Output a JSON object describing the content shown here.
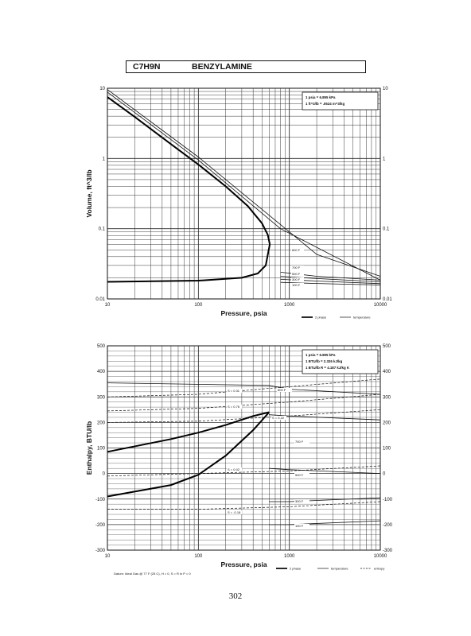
{
  "header": {
    "formula": "C7H9N",
    "compound": "BENZYLAMINE"
  },
  "page_number": "302",
  "chart_data": [
    {
      "type": "line",
      "xscale": "log",
      "yscale": "log",
      "xlim": [
        10,
        10000
      ],
      "ylim": [
        0.01,
        10
      ],
      "xticks": [
        "10",
        "100",
        "1000",
        "10000"
      ],
      "yticks": [
        "0.01",
        "0.1",
        "1",
        "10"
      ],
      "yticks_right": [
        "0.01",
        "0.1",
        "1",
        "10"
      ],
      "xlabel": "Pressure,  psia",
      "ylabel": "Volume, ft^3/lb",
      "grid": true,
      "conversion_box": [
        "1 psia  =  6.895 kPa",
        "1 ft^3/lb  =  .0624 m^3/kg"
      ],
      "legend": [
        "2 phase",
        "temperature"
      ],
      "saturation": {
        "vapor": {
          "x": [
            10,
            20,
            50,
            100,
            200,
            350,
            500,
            580,
            610
          ],
          "y": [
            7.5,
            3.9,
            1.6,
            0.82,
            0.4,
            0.21,
            0.12,
            0.082,
            0.06
          ]
        },
        "liquid": {
          "x": [
            10,
            100,
            300,
            450,
            550,
            610
          ],
          "y": [
            0.0175,
            0.0182,
            0.02,
            0.023,
            0.03,
            0.06
          ]
        }
      },
      "series": [
        {
          "name": "800 F",
          "x": [
            10,
            100,
            1000,
            2000,
            10000
          ],
          "y": [
            9.6,
            1.05,
            0.09,
            0.043,
            0.021
          ]
        },
        {
          "x": [
            10,
            100,
            800,
            10000
          ],
          "y": [
            8.8,
            0.95,
            0.1,
            0.0185
          ]
        },
        {
          "name": "700 F",
          "x": [
            800,
            2000,
            10000
          ],
          "y": [
            0.024,
            0.021,
            0.0185
          ]
        },
        {
          "name": "500 F",
          "x": [
            800,
            2000,
            10000
          ],
          "y": [
            0.021,
            0.0195,
            0.0175
          ]
        },
        {
          "name": "300 F",
          "x": [
            800,
            2000,
            10000
          ],
          "y": [
            0.019,
            0.018,
            0.0165
          ]
        },
        {
          "name": "100 F",
          "x": [
            800,
            2000,
            10000
          ],
          "y": [
            0.0172,
            0.0166,
            0.0158
          ]
        }
      ],
      "labels": [
        "800 F",
        "700 F",
        "500 F",
        "300 F",
        "100 F"
      ]
    },
    {
      "type": "line",
      "xscale": "log",
      "xlim": [
        10,
        10000
      ],
      "ylim": [
        -300,
        500
      ],
      "xticks": [
        "10",
        "100",
        "1000",
        "10000"
      ],
      "yticks": [
        "-300",
        "-200",
        "-100",
        "0",
        "100",
        "200",
        "300",
        "400",
        "500"
      ],
      "yticks_right": [
        "-300",
        "-200",
        "-100",
        "0",
        "100",
        "200",
        "300",
        "400",
        "500"
      ],
      "xlabel": "Pressure,  psia",
      "ylabel": "Enthalpy, BTU/lb",
      "grid": true,
      "conversion_box": [
        "1 psia  =  6.895 kPa",
        "1 BTU/lb  =  2.326 kJ/kg",
        "1 BTU/lb R  =  4.187 kJ/kg K"
      ],
      "footnote": "Datum: Ideal Gas @ 77 F (25 C),  H = 0,  S = R ln P = 0",
      "legend": [
        "2 phase",
        "temperature",
        "entropy"
      ],
      "saturation": {
        "vapor": {
          "x": [
            10,
            50,
            100,
            200,
            400,
            600
          ],
          "y": [
            85,
            135,
            160,
            190,
            225,
            240
          ]
        },
        "liquid": {
          "x": [
            10,
            50,
            100,
            200,
            400,
            600
          ],
          "y": [
            -90,
            -45,
            -5,
            70,
            170,
            240
          ]
        }
      },
      "temperature_lines": [
        {
          "name": "800 F",
          "x": [
            10,
            600,
            1000,
            10000
          ],
          "y": [
            355,
            345,
            330,
            310
          ]
        },
        {
          "name": "700 F",
          "x": [
            600,
            1000,
            10000
          ],
          "y": [
            230,
            225,
            210
          ]
        },
        {
          "name": "500 F",
          "x": [
            600,
            1000,
            10000
          ],
          "y": [
            20,
            15,
            0
          ]
        },
        {
          "name": "300 F",
          "x": [
            600,
            1000,
            10000
          ],
          "y": [
            -110,
            -110,
            -95
          ]
        },
        {
          "name": "100 F",
          "x": [
            600,
            1000,
            10000
          ],
          "y": [
            -200,
            -200,
            -185
          ]
        }
      ],
      "entropy_lines": [
        {
          "name": "S = 0.31",
          "x": [
            10,
            100,
            1000,
            10000
          ],
          "y": [
            300,
            310,
            340,
            370
          ]
        },
        {
          "name": "S = 0.76",
          "x": [
            10,
            100,
            1000,
            10000
          ],
          "y": [
            245,
            255,
            280,
            310
          ]
        },
        {
          "name": "S = 0.22",
          "x": [
            10,
            100,
            1000,
            10000
          ],
          "y": [
            200,
            205,
            225,
            250
          ]
        },
        {
          "name": "S = 0.02",
          "x": [
            10,
            100,
            1000,
            10000
          ],
          "y": [
            -10,
            0,
            10,
            30
          ]
        },
        {
          "name": "S = -0.18",
          "x": [
            10,
            100,
            1000,
            10000
          ],
          "y": [
            -140,
            -140,
            -130,
            -110
          ]
        }
      ],
      "labels": [
        "800 F",
        "700 F",
        "500 F",
        "300 F",
        "100 F",
        "S = 0.31",
        "S = 0.76",
        "S = 0.22",
        "S = 0.02",
        "S = -0.18"
      ]
    }
  ]
}
